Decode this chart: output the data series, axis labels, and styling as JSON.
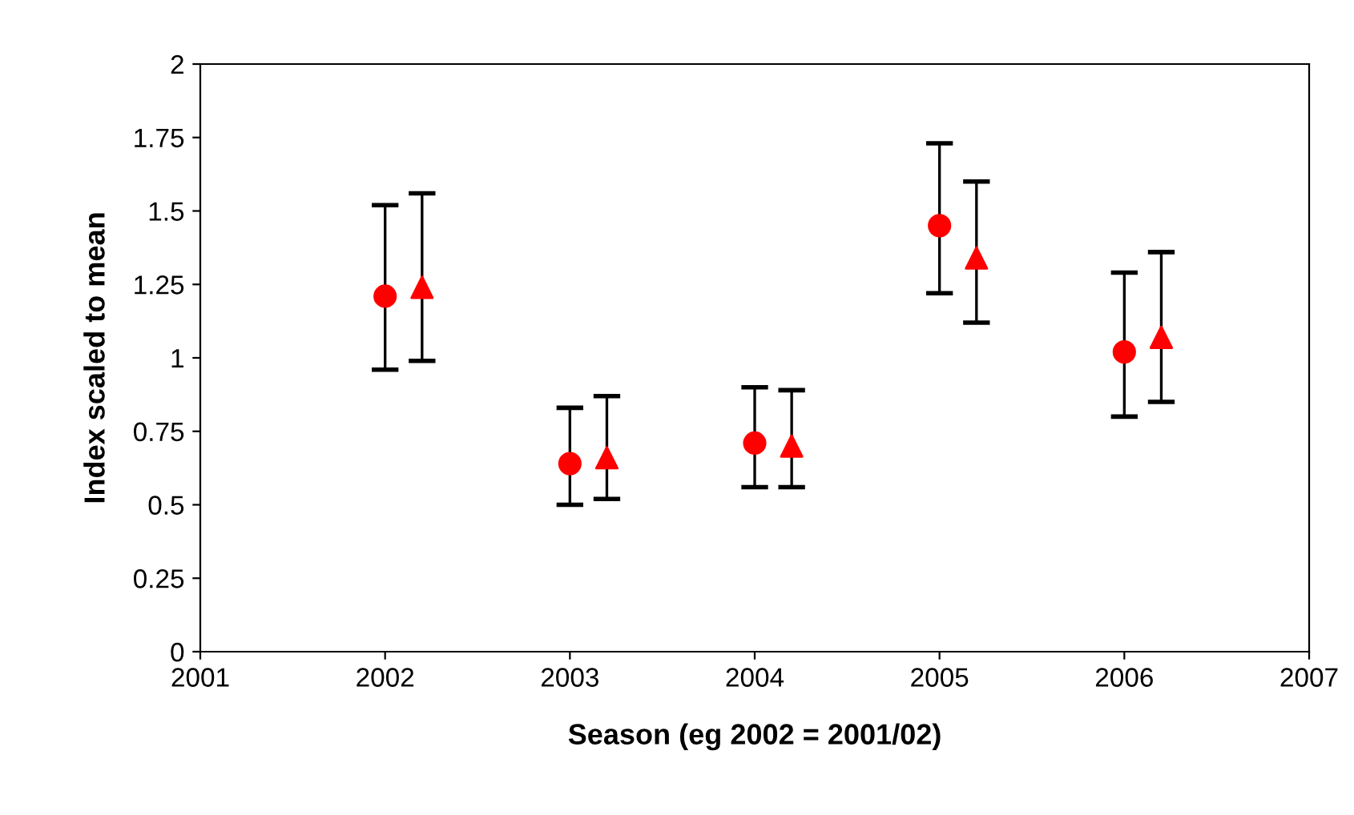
{
  "chart_data": {
    "type": "scatter",
    "xlabel": "Season (eg 2002 = 2001/02)",
    "ylabel": "Index scaled to mean",
    "xlim": [
      2001,
      2007
    ],
    "xticks": [
      2001,
      2002,
      2003,
      2004,
      2005,
      2006,
      2007
    ],
    "ylim": [
      0,
      2
    ],
    "yticks": [
      0,
      0.25,
      0.5,
      0.75,
      1,
      1.25,
      1.5,
      1.75,
      2
    ],
    "grid": false,
    "legend": false,
    "series": [
      {
        "color": "#ff0000",
        "marker": "circle",
        "x": [
          2002,
          2003,
          2004,
          2005,
          2006
        ],
        "values": [
          1.21,
          0.64,
          0.71,
          1.45,
          1.02
        ],
        "errors": [
          [
            0.96,
            1.52
          ],
          [
            0.5,
            0.83
          ],
          [
            0.56,
            0.9
          ],
          [
            1.22,
            1.73
          ],
          [
            0.8,
            1.29
          ]
        ]
      },
      {
        "color": "#ff0000",
        "marker": "triangle",
        "x": [
          2002.2,
          2003.2,
          2004.2,
          2005.2,
          2006.2
        ],
        "values": [
          1.24,
          0.66,
          0.7,
          1.34,
          1.07
        ],
        "errors": [
          [
            0.99,
            1.56
          ],
          [
            0.52,
            0.87
          ],
          [
            0.56,
            0.89
          ],
          [
            1.12,
            1.6
          ],
          [
            0.85,
            1.36
          ]
        ]
      }
    ]
  }
}
